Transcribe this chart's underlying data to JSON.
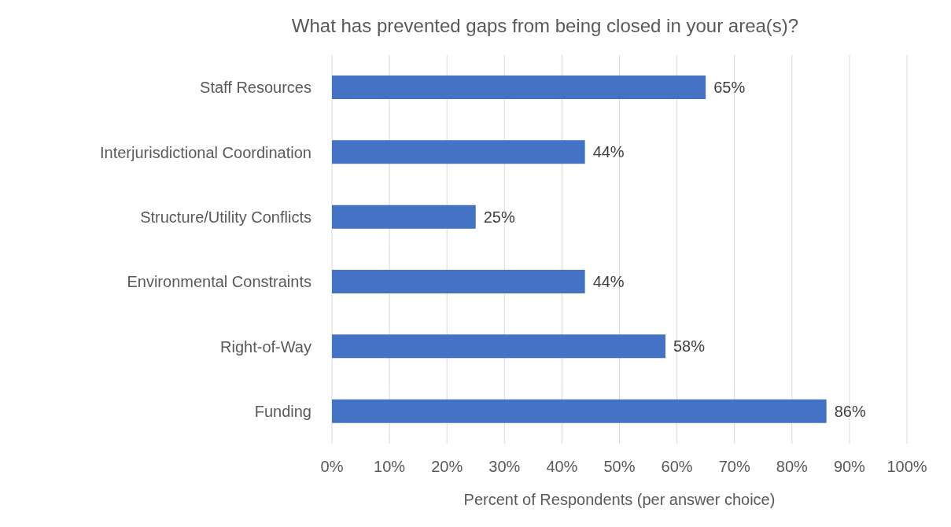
{
  "chart_data": {
    "type": "bar",
    "orientation": "horizontal",
    "title": "What has prevented gaps from being closed in your area(s)?",
    "xlabel": "Percent of Respondents (per answer choice)",
    "categories": [
      "Staff Resources",
      "Interjurisdictional Coordination",
      "Structure/Utility Conflicts",
      "Environmental Constraints",
      "Right-of-Way",
      "Funding"
    ],
    "values": [
      65,
      44,
      25,
      44,
      58,
      86
    ],
    "value_labels": [
      "65%",
      "44%",
      "25%",
      "44%",
      "58%",
      "86%"
    ],
    "color": "#4472c4",
    "xlim": [
      0,
      100
    ],
    "xticks": [
      {
        "value": 0,
        "label": "0%"
      },
      {
        "value": 10,
        "label": "10%"
      },
      {
        "value": 20,
        "label": "20%"
      },
      {
        "value": 30,
        "label": "30%"
      },
      {
        "value": 40,
        "label": "40%"
      },
      {
        "value": 50,
        "label": "50%"
      },
      {
        "value": 60,
        "label": "60%"
      },
      {
        "value": 70,
        "label": "70%"
      },
      {
        "value": 80,
        "label": "80%"
      },
      {
        "value": 90,
        "label": "90%"
      },
      {
        "value": 100,
        "label": "100%"
      }
    ],
    "grid": "x"
  }
}
